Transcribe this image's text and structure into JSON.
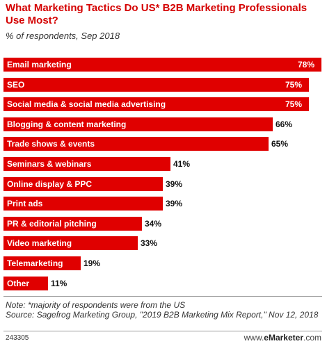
{
  "chart_data": {
    "type": "bar",
    "orientation": "horizontal",
    "title": "What Marketing Tactics Do US* B2B Marketing Professionals Use Most?",
    "subtitle": "% of respondents, Sep 2018",
    "categories": [
      "Email marketing",
      "SEO",
      "Social media & social media advertising",
      "Blogging & content marketing",
      "Trade shows & events",
      "Seminars & webinars",
      "Online display & PPC",
      "Print ads",
      "PR & editorial pitching",
      "Video marketing",
      "Telemarketing",
      "Other"
    ],
    "values": [
      78,
      75,
      75,
      66,
      65,
      41,
      39,
      39,
      34,
      33,
      19,
      11
    ],
    "value_labels": [
      "78%",
      "75%",
      "75%",
      "66%",
      "65%",
      "41%",
      "39%",
      "39%",
      "34%",
      "33%",
      "19%",
      "11%"
    ],
    "xlim": [
      0,
      78
    ],
    "bar_color": "#e00000",
    "grid": false
  },
  "footer": {
    "note": "Note: *majority of respondents were from the US",
    "source": "Source: Sagefrog Marketing Group, \"2019 B2B Marketing Mix Report,\" Nov 12, 2018",
    "chart_id": "243305",
    "brand_prefix": "www.",
    "brand_name": "eMarketer",
    "brand_suffix": ".com"
  }
}
